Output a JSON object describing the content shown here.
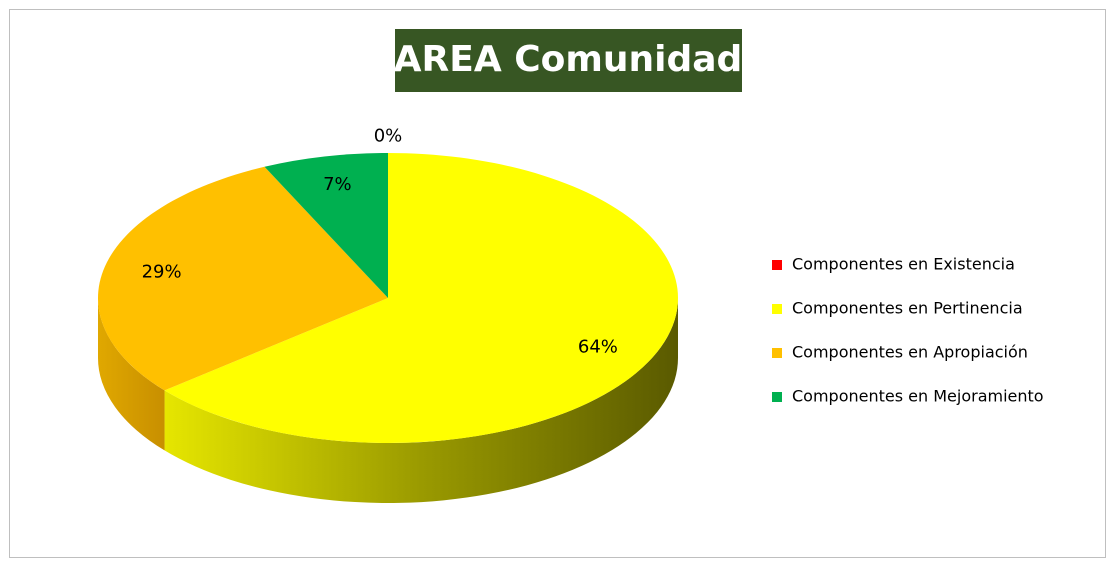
{
  "chart_data": {
    "type": "pie3d",
    "title": "AREA Comunidad",
    "categories": [
      "Componentes en Existencia",
      "Componentes en Pertinencia",
      "Componentes en Apropiación",
      "Componentes en Mejoramiento"
    ],
    "values": [
      0,
      64,
      29,
      7
    ],
    "value_labels": [
      "0%",
      "64%",
      "29%",
      "7%"
    ],
    "colors": [
      "#ff0000",
      "#ffff00",
      "#ffc000",
      "#00b050"
    ],
    "legend": "right"
  }
}
